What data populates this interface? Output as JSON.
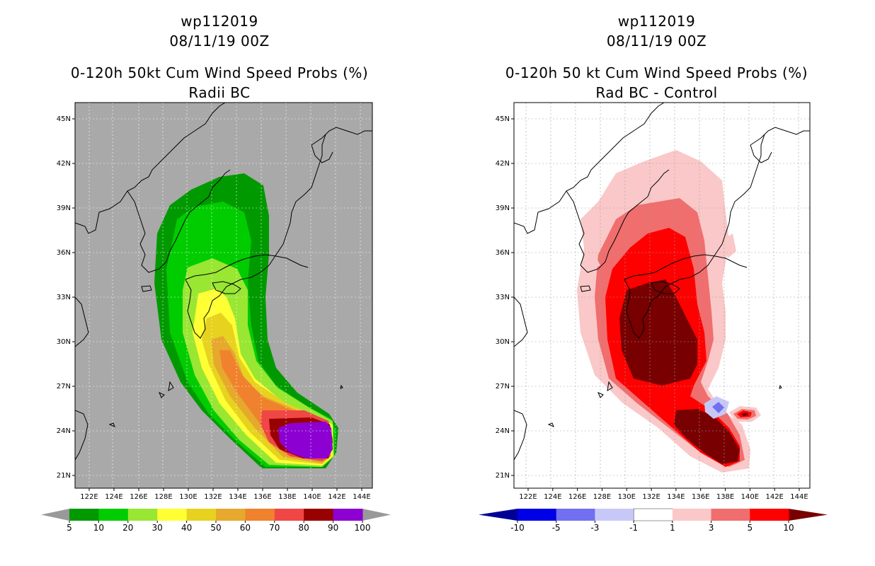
{
  "left_panel": {
    "storm_id": "wp112019",
    "datetime": "08/11/19 00Z",
    "title": "0-120h 50kt Cum Wind Speed Probs (%)",
    "subtitle": "Radii BC",
    "colorbar": {
      "labels": [
        "5",
        "10",
        "20",
        "30",
        "40",
        "50",
        "60",
        "70",
        "80",
        "90",
        "100"
      ],
      "colors": [
        "#009900",
        "#00cc00",
        "#99e633",
        "#ffff33",
        "#e6d21f",
        "#e6a82d",
        "#f0822d",
        "#f04646",
        "#990000",
        "#8c00d2"
      ],
      "end_color": "#999999"
    },
    "background_color": "#a9a9a9"
  },
  "right_panel": {
    "storm_id": "wp112019",
    "datetime": "08/11/19 00Z",
    "title": "0-120h 50 kt Cum Wind Speed Probs (%)",
    "subtitle": "Rad BC - Control",
    "colorbar": {
      "labels": [
        "-10",
        "-5",
        "-3",
        "-1",
        "1",
        "3",
        "5",
        "10"
      ],
      "colors": [
        "#0000e6",
        "#7070f0",
        "#c8c8f8",
        "#ffffff",
        "#fac8c8",
        "#f06e6e",
        "#ff0000"
      ],
      "left_end_color": "#000096",
      "right_end_color": "#780000"
    },
    "background_color": "#ffffff"
  },
  "axes": {
    "lat_labels": [
      "45N",
      "42N",
      "39N",
      "36N",
      "33N",
      "30N",
      "27N",
      "24N",
      "21N"
    ],
    "lon_labels": [
      "122E",
      "124E",
      "126E",
      "128E",
      "130E",
      "132E",
      "134E",
      "136E",
      "138E",
      "140E",
      "142E",
      "144E"
    ]
  }
}
